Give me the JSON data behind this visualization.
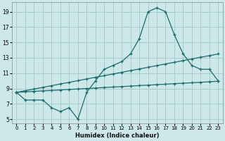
{
  "xlabel": "Humidex (Indice chaleur)",
  "bg_color": "#cce8e8",
  "grid_color": "#aacccc",
  "line_color": "#1a6b6b",
  "xlim": [
    -0.5,
    23.5
  ],
  "ylim": [
    4.5,
    20.2
  ],
  "xticks": [
    0,
    1,
    2,
    3,
    4,
    5,
    6,
    7,
    8,
    9,
    10,
    11,
    12,
    13,
    14,
    15,
    16,
    17,
    18,
    19,
    20,
    21,
    22,
    23
  ],
  "yticks": [
    5,
    7,
    9,
    11,
    13,
    15,
    17,
    19
  ],
  "x_all": [
    0,
    1,
    2,
    3,
    4,
    5,
    6,
    7,
    8,
    9,
    10,
    11,
    12,
    13,
    14,
    15,
    16,
    17,
    18,
    19,
    20,
    21,
    22,
    23
  ],
  "jagged": [
    8.5,
    7.5,
    7.5,
    7.5,
    6.5,
    6.0,
    6.5,
    5.0,
    8.5,
    10.0,
    11.5,
    12.0,
    12.5,
    13.5,
    15.5,
    19.0,
    19.5,
    19.0,
    16.0,
    13.5,
    12.0,
    11.5,
    11.5,
    10.0
  ],
  "straight_low_x": [
    0,
    1,
    2,
    3,
    4,
    5,
    6,
    7,
    8,
    9,
    10,
    11,
    12,
    13,
    14,
    15,
    16,
    17,
    18,
    19,
    20,
    21,
    22,
    23
  ],
  "straight_low_y": [
    8.5,
    8.56,
    8.63,
    8.69,
    8.75,
    8.81,
    8.88,
    8.94,
    9.0,
    9.06,
    9.13,
    9.19,
    9.25,
    9.31,
    9.38,
    9.44,
    9.5,
    9.56,
    9.63,
    9.69,
    9.75,
    9.81,
    9.88,
    9.94
  ],
  "straight_high_x": [
    0,
    1,
    2,
    3,
    4,
    5,
    6,
    7,
    8,
    9,
    10,
    11,
    12,
    13,
    14,
    15,
    16,
    17,
    18,
    19,
    20,
    21,
    22,
    23
  ],
  "straight_high_y": [
    8.5,
    8.72,
    8.93,
    9.15,
    9.37,
    9.59,
    9.8,
    10.02,
    10.24,
    10.46,
    10.67,
    10.89,
    11.11,
    11.33,
    11.54,
    11.76,
    11.98,
    12.2,
    12.41,
    12.63,
    12.85,
    13.07,
    13.28,
    13.5
  ]
}
